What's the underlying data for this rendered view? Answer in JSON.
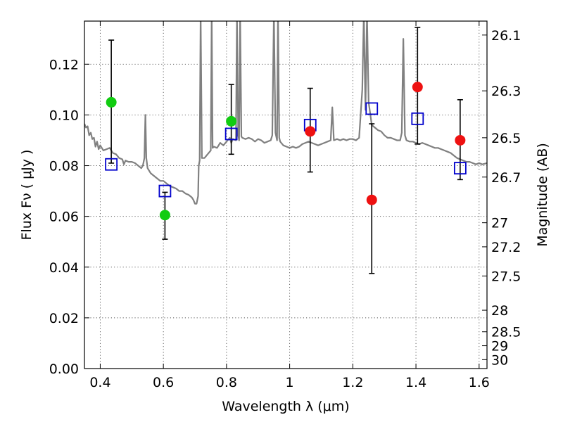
{
  "chart_data": {
    "type": "scatter",
    "xlabel": "Wavelength  λ (μm)",
    "ylabel": "Flux  Fν  ( μJy )",
    "ylabel_right": "Magnitude (AB)",
    "xlim": [
      0.35,
      1.625
    ],
    "ylim": [
      0.0,
      0.137
    ],
    "grid": true,
    "x_ticks": [
      0.4,
      0.6,
      0.8,
      1.0,
      1.2,
      1.4,
      1.6
    ],
    "x_tick_labels": [
      "0.4",
      "0.6",
      "0.8",
      "1",
      "1.2",
      "1.4",
      "1.6"
    ],
    "y_ticks": [
      0.0,
      0.02,
      0.04,
      0.06,
      0.08,
      0.1,
      0.12
    ],
    "y_tick_labels": [
      "0.00",
      "0.02",
      "0.04",
      "0.06",
      "0.08",
      "0.10",
      "0.12"
    ],
    "right_ticks": [
      {
        "label": "26.1",
        "flux": 0.1315
      },
      {
        "label": "26.3",
        "flux": 0.1095
      },
      {
        "label": "26.5",
        "flux": 0.091
      },
      {
        "label": "26.7",
        "flux": 0.0755
      },
      {
        "label": "27",
        "flux": 0.0575
      },
      {
        "label": "27.2",
        "flux": 0.048
      },
      {
        "label": "27.5",
        "flux": 0.0365
      },
      {
        "label": "28",
        "flux": 0.023
      },
      {
        "label": "28.5",
        "flux": 0.0145
      },
      {
        "label": "29",
        "flux": 0.009
      },
      {
        "label": "30",
        "flux": 0.0035
      }
    ],
    "series": [
      {
        "type": "line",
        "color": "#808080",
        "points": [
          [
            0.35,
            0.0965
          ],
          [
            0.355,
            0.095
          ],
          [
            0.36,
            0.0955
          ],
          [
            0.365,
            0.092
          ],
          [
            0.37,
            0.093
          ],
          [
            0.375,
            0.0905
          ],
          [
            0.38,
            0.091
          ],
          [
            0.385,
            0.0875
          ],
          [
            0.39,
            0.0895
          ],
          [
            0.395,
            0.0865
          ],
          [
            0.4,
            0.088
          ],
          [
            0.41,
            0.086
          ],
          [
            0.42,
            0.0865
          ],
          [
            0.43,
            0.087
          ],
          [
            0.44,
            0.085
          ],
          [
            0.45,
            0.0845
          ],
          [
            0.46,
            0.083
          ],
          [
            0.47,
            0.0825
          ],
          [
            0.475,
            0.0805
          ],
          [
            0.48,
            0.082
          ],
          [
            0.49,
            0.0815
          ],
          [
            0.5,
            0.0815
          ],
          [
            0.51,
            0.081
          ],
          [
            0.52,
            0.08
          ],
          [
            0.53,
            0.079
          ],
          [
            0.535,
            0.08
          ],
          [
            0.54,
            0.083
          ],
          [
            0.543,
            0.1
          ],
          [
            0.546,
            0.083
          ],
          [
            0.55,
            0.079
          ],
          [
            0.56,
            0.077
          ],
          [
            0.57,
            0.076
          ],
          [
            0.58,
            0.075
          ],
          [
            0.59,
            0.074
          ],
          [
            0.6,
            0.074
          ],
          [
            0.61,
            0.073
          ],
          [
            0.62,
            0.072
          ],
          [
            0.63,
            0.0715
          ],
          [
            0.64,
            0.071
          ],
          [
            0.65,
            0.07
          ],
          [
            0.66,
            0.07
          ],
          [
            0.67,
            0.069
          ],
          [
            0.68,
            0.0685
          ],
          [
            0.69,
            0.0675
          ],
          [
            0.695,
            0.0665
          ],
          [
            0.7,
            0.065
          ],
          [
            0.705,
            0.065
          ],
          [
            0.71,
            0.068
          ],
          [
            0.712,
            0.08
          ],
          [
            0.715,
            0.082
          ],
          [
            0.718,
            0.14
          ],
          [
            0.722,
            0.083
          ],
          [
            0.73,
            0.083
          ],
          [
            0.74,
            0.0845
          ],
          [
            0.75,
            0.086
          ],
          [
            0.753,
            0.14
          ],
          [
            0.756,
            0.087
          ],
          [
            0.76,
            0.0875
          ],
          [
            0.77,
            0.087
          ],
          [
            0.78,
            0.089
          ],
          [
            0.79,
            0.088
          ],
          [
            0.8,
            0.0895
          ],
          [
            0.81,
            0.091
          ],
          [
            0.815,
            0.089
          ],
          [
            0.82,
            0.0905
          ],
          [
            0.83,
            0.09
          ],
          [
            0.833,
            0.14
          ],
          [
            0.837,
            0.092
          ],
          [
            0.84,
            0.09
          ],
          [
            0.843,
            0.14
          ],
          [
            0.847,
            0.0915
          ],
          [
            0.85,
            0.091
          ],
          [
            0.86,
            0.0905
          ],
          [
            0.87,
            0.091
          ],
          [
            0.88,
            0.0905
          ],
          [
            0.89,
            0.0895
          ],
          [
            0.9,
            0.0905
          ],
          [
            0.91,
            0.09
          ],
          [
            0.92,
            0.089
          ],
          [
            0.93,
            0.0895
          ],
          [
            0.94,
            0.09
          ],
          [
            0.945,
            0.092
          ],
          [
            0.95,
            0.14
          ],
          [
            0.955,
            0.093
          ],
          [
            0.96,
            0.09
          ],
          [
            0.963,
            0.14
          ],
          [
            0.967,
            0.091
          ],
          [
            0.97,
            0.0895
          ],
          [
            0.98,
            0.088
          ],
          [
            0.99,
            0.0875
          ],
          [
            1.0,
            0.087
          ],
          [
            1.01,
            0.0875
          ],
          [
            1.02,
            0.087
          ],
          [
            1.03,
            0.0875
          ],
          [
            1.04,
            0.0885
          ],
          [
            1.05,
            0.089
          ],
          [
            1.06,
            0.0895
          ],
          [
            1.07,
            0.089
          ],
          [
            1.08,
            0.0885
          ],
          [
            1.09,
            0.088
          ],
          [
            1.1,
            0.0885
          ],
          [
            1.11,
            0.089
          ],
          [
            1.12,
            0.0895
          ],
          [
            1.13,
            0.09
          ],
          [
            1.135,
            0.103
          ],
          [
            1.14,
            0.09
          ],
          [
            1.15,
            0.0905
          ],
          [
            1.16,
            0.09
          ],
          [
            1.17,
            0.0905
          ],
          [
            1.18,
            0.09
          ],
          [
            1.19,
            0.0905
          ],
          [
            1.2,
            0.0905
          ],
          [
            1.21,
            0.09
          ],
          [
            1.22,
            0.091
          ],
          [
            1.23,
            0.11
          ],
          [
            1.235,
            0.14
          ],
          [
            1.24,
            0.102
          ],
          [
            1.245,
            0.14
          ],
          [
            1.25,
            0.105
          ],
          [
            1.26,
            0.096
          ],
          [
            1.27,
            0.095
          ],
          [
            1.28,
            0.094
          ],
          [
            1.29,
            0.0935
          ],
          [
            1.3,
            0.092
          ],
          [
            1.31,
            0.091
          ],
          [
            1.32,
            0.091
          ],
          [
            1.33,
            0.0905
          ],
          [
            1.34,
            0.09
          ],
          [
            1.35,
            0.09
          ],
          [
            1.355,
            0.093
          ],
          [
            1.36,
            0.13
          ],
          [
            1.365,
            0.092
          ],
          [
            1.37,
            0.09
          ],
          [
            1.38,
            0.0895
          ],
          [
            1.39,
            0.0895
          ],
          [
            1.4,
            0.089
          ],
          [
            1.41,
            0.0885
          ],
          [
            1.42,
            0.089
          ],
          [
            1.43,
            0.0885
          ],
          [
            1.44,
            0.088
          ],
          [
            1.45,
            0.0875
          ],
          [
            1.46,
            0.087
          ],
          [
            1.47,
            0.087
          ],
          [
            1.48,
            0.0865
          ],
          [
            1.49,
            0.086
          ],
          [
            1.5,
            0.0855
          ],
          [
            1.51,
            0.085
          ],
          [
            1.52,
            0.084
          ],
          [
            1.53,
            0.083
          ],
          [
            1.54,
            0.0825
          ],
          [
            1.55,
            0.082
          ],
          [
            1.56,
            0.0815
          ],
          [
            1.57,
            0.0815
          ],
          [
            1.58,
            0.081
          ],
          [
            1.59,
            0.0805
          ],
          [
            1.6,
            0.081
          ],
          [
            1.61,
            0.0805
          ],
          [
            1.625,
            0.081
          ]
        ]
      },
      {
        "type": "squares",
        "color": "#0000cc",
        "points": [
          [
            0.435,
            0.0805
          ],
          [
            0.605,
            0.07
          ],
          [
            0.815,
            0.0925
          ],
          [
            1.065,
            0.096
          ],
          [
            1.26,
            0.1025
          ],
          [
            1.405,
            0.0985
          ],
          [
            1.54,
            0.079
          ]
        ]
      },
      {
        "type": "circles",
        "points": [
          {
            "x": 0.435,
            "y": 0.105,
            "yerr": [
              0.081,
              0.1295
            ],
            "color": "#11cc11"
          },
          {
            "x": 0.605,
            "y": 0.0605,
            "yerr": [
              0.051,
              0.0695
            ],
            "color": "#11cc11"
          },
          {
            "x": 0.815,
            "y": 0.0975,
            "yerr": [
              0.0845,
              0.112
            ],
            "color": "#11cc11"
          },
          {
            "x": 1.065,
            "y": 0.0935,
            "yerr": [
              0.0775,
              0.1105
            ],
            "color": "#ee1111"
          },
          {
            "x": 1.26,
            "y": 0.0665,
            "yerr": [
              0.0375,
              0.0965
            ],
            "color": "#ee1111"
          },
          {
            "x": 1.405,
            "y": 0.111,
            "yerr": [
              0.0885,
              0.1345
            ],
            "color": "#ee1111"
          },
          {
            "x": 1.54,
            "y": 0.09,
            "yerr": [
              0.0745,
              0.106
            ],
            "color": "#ee1111"
          }
        ]
      }
    ]
  }
}
